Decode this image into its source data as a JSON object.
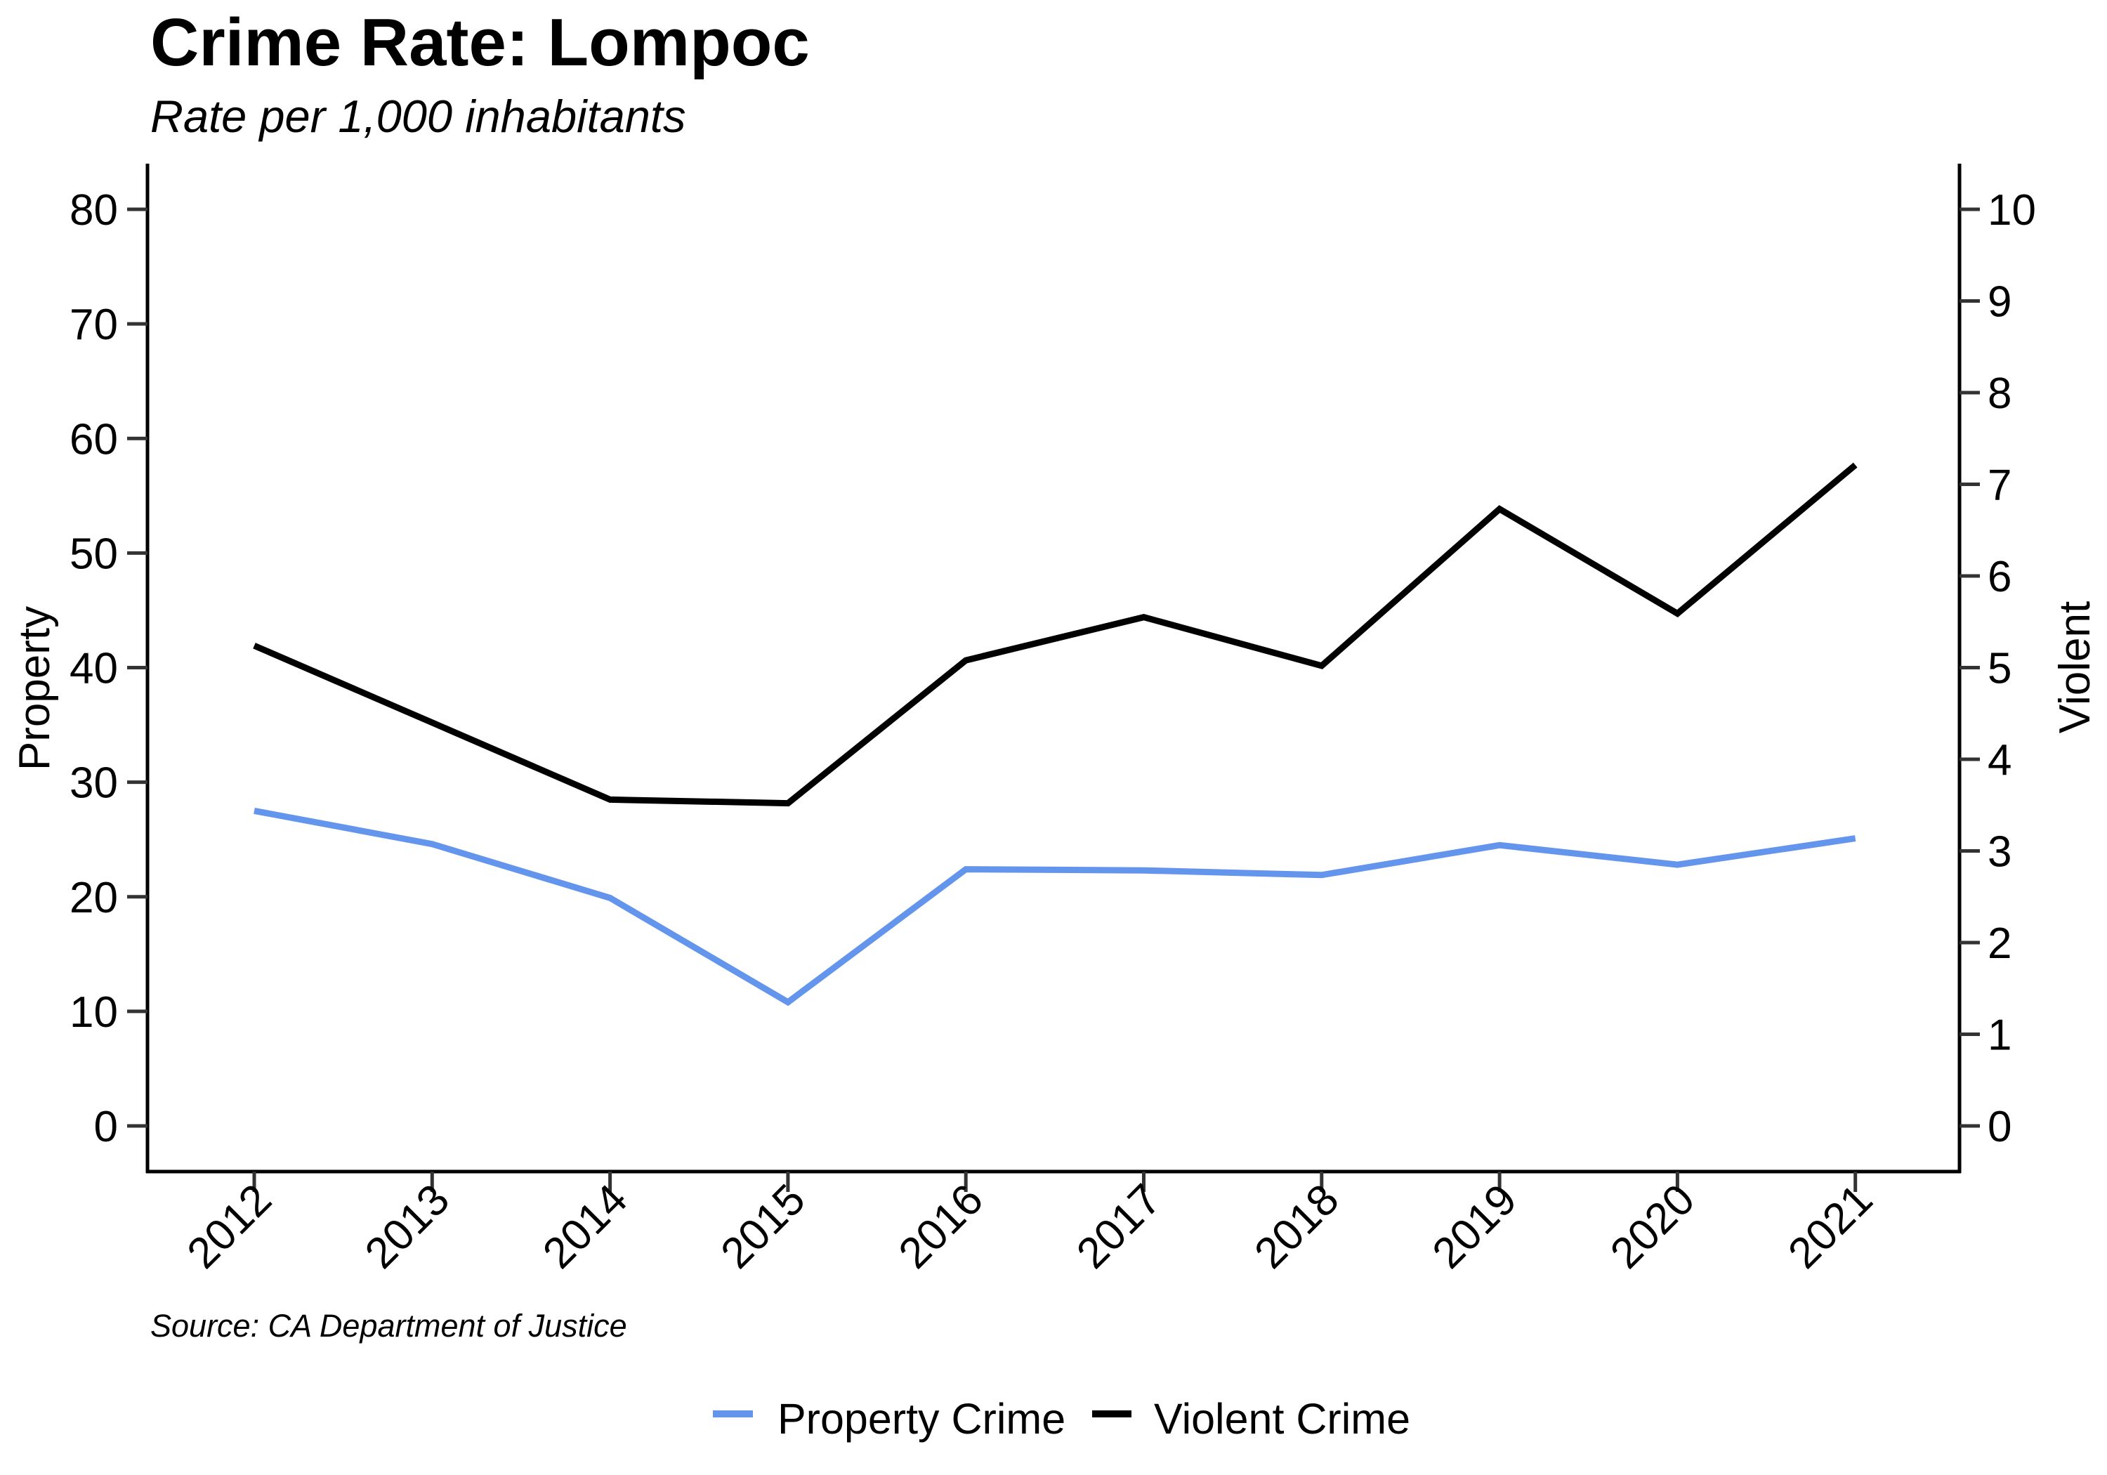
{
  "colors": {
    "property": "#6495ED",
    "violent": "#000000",
    "axis": "#000000",
    "tick": "#333333",
    "background": "#FFFFFF"
  },
  "chart_data": {
    "type": "line",
    "title": "Crime Rate: Lompoc",
    "subtitle": "Rate per 1,000 inhabitants",
    "source": "Source: CA Department of Justice",
    "xlabel": "",
    "x": [
      "2012",
      "2013",
      "2014",
      "2015",
      "2016",
      "2017",
      "2018",
      "2019",
      "2020",
      "2021"
    ],
    "y_left": {
      "label": "Property",
      "range": [
        -3.8,
        83.8
      ],
      "ticks": [
        0,
        10,
        20,
        30,
        40,
        50,
        60,
        70,
        80
      ]
    },
    "y_right": {
      "label": "Violent",
      "range": [
        -0.475,
        10.475
      ],
      "ticks": [
        0,
        1,
        2,
        3,
        4,
        5,
        6,
        7,
        8,
        9,
        10
      ]
    },
    "grid": false,
    "legend_position": "bottom",
    "series": [
      {
        "name": "Property Crime",
        "axis": "left",
        "color": "#6495ED",
        "values": [
          27.5,
          24.6,
          19.9,
          10.8,
          22.4,
          22.3,
          21.9,
          24.5,
          22.8,
          25.1
        ]
      },
      {
        "name": "Violent Crime",
        "axis": "right",
        "color": "#000000",
        "values": [
          5.24,
          4.4,
          3.56,
          3.52,
          5.08,
          5.55,
          5.02,
          6.73,
          5.59,
          7.21
        ]
      }
    ]
  }
}
